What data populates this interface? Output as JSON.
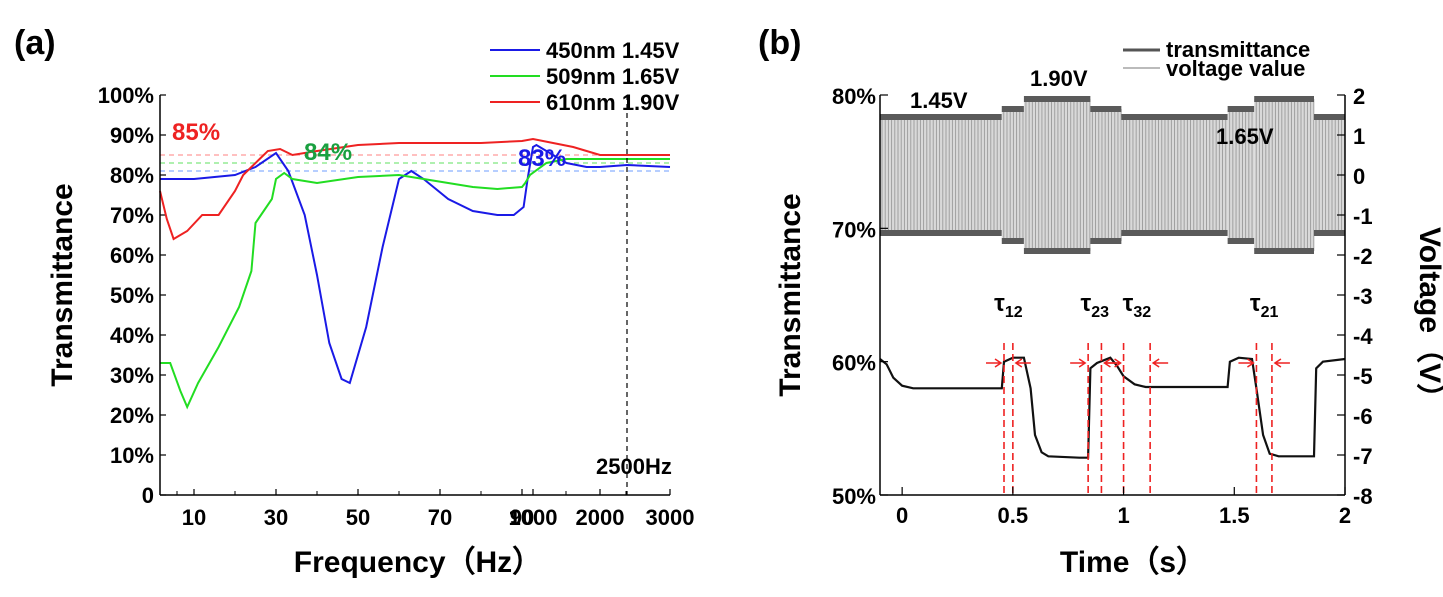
{
  "panels": [
    {
      "label": "(a)",
      "chart_data": {
        "type": "line",
        "xlabel": "Frequency（Hz）",
        "ylabel": "Transmittance",
        "x_ticks": [
          "10",
          "30",
          "50",
          "70",
          "90",
          "1000",
          "2000",
          "3000"
        ],
        "y_ticks": [
          "0",
          "10%",
          "20%",
          "30%",
          "40%",
          "50%",
          "60%",
          "70%",
          "80%",
          "90%",
          "100%"
        ],
        "ylim": [
          0,
          100
        ],
        "marker_line": {
          "label": "2500Hz",
          "x": 2500
        },
        "series": [
          {
            "name": "450nm 1.45V",
            "color": "#1a1ae6",
            "ref_label": "83%",
            "ref_value": 81,
            "points": [
              [
                0,
                79
              ],
              [
                10,
                79
              ],
              [
                20,
                80
              ],
              [
                25,
                82
              ],
              [
                30,
                85.5
              ],
              [
                33,
                81
              ],
              [
                37,
                70
              ],
              [
                40,
                55
              ],
              [
                43,
                38
              ],
              [
                46,
                29
              ],
              [
                48,
                28
              ],
              [
                52,
                42
              ],
              [
                56,
                62
              ],
              [
                60,
                79
              ],
              [
                63,
                81
              ],
              [
                66,
                79
              ],
              [
                72,
                74
              ],
              [
                78,
                71
              ],
              [
                84,
                70
              ],
              [
                88,
                70
              ],
              [
                92,
                72
              ],
              [
                97,
                79
              ],
              [
                1000,
                87
              ],
              [
                1050,
                87.5
              ],
              [
                1200,
                86
              ],
              [
                1500,
                83
              ],
              [
                1800,
                82
              ],
              [
                2000,
                82
              ],
              [
                2500,
                82.5
              ],
              [
                3000,
                82
              ]
            ]
          },
          {
            "name": "509nm 1.65V",
            "color": "#22dd22",
            "ref_label": "84%",
            "ref_value": 83,
            "points": [
              [
                0,
                33
              ],
              [
                3,
                33
              ],
              [
                6,
                26
              ],
              [
                8,
                22
              ],
              [
                11,
                28
              ],
              [
                16,
                37
              ],
              [
                21,
                47
              ],
              [
                24,
                56
              ],
              [
                25,
                68
              ],
              [
                27,
                71
              ],
              [
                29,
                74
              ],
              [
                30,
                79
              ],
              [
                32,
                80.5
              ],
              [
                34,
                79
              ],
              [
                40,
                78
              ],
              [
                50,
                79.5
              ],
              [
                60,
                80
              ],
              [
                66,
                79
              ],
              [
                72,
                78
              ],
              [
                78,
                77
              ],
              [
                84,
                76.5
              ],
              [
                90,
                77
              ],
              [
                94,
                78
              ],
              [
                100,
                80
              ],
              [
                1200,
                83
              ],
              [
                1500,
                84
              ],
              [
                1800,
                84
              ],
              [
                2000,
                84
              ],
              [
                2500,
                84
              ],
              [
                3000,
                84
              ]
            ]
          },
          {
            "name": "610nm 1.90V",
            "color": "#ee2222",
            "ref_label": "85%",
            "ref_value": 85,
            "points": [
              [
                0,
                76
              ],
              [
                2,
                69
              ],
              [
                4,
                64
              ],
              [
                8,
                66
              ],
              [
                12,
                70
              ],
              [
                16,
                70
              ],
              [
                20,
                76
              ],
              [
                22,
                80
              ],
              [
                24,
                82
              ],
              [
                26,
                84
              ],
              [
                28,
                86
              ],
              [
                31,
                86.5
              ],
              [
                34,
                85
              ],
              [
                40,
                86
              ],
              [
                50,
                87.5
              ],
              [
                60,
                88
              ],
              [
                70,
                88
              ],
              [
                80,
                88
              ],
              [
                90,
                88.5
              ],
              [
                1000,
                89
              ],
              [
                1300,
                88
              ],
              [
                1600,
                87
              ],
              [
                1800,
                86
              ],
              [
                2000,
                85
              ],
              [
                2500,
                85
              ],
              [
                3000,
                85
              ]
            ]
          }
        ]
      }
    },
    {
      "label": "(b)",
      "chart_data": {
        "type": "line",
        "xlabel": "Time（s）",
        "ylabel_left": "Transmittance",
        "ylabel_right": "Voltage（V）",
        "x_ticks": [
          "0",
          "0.5",
          "1",
          "1.5",
          "2"
        ],
        "xlim": [
          -0.1,
          2.0
        ],
        "y_ticks_left": [
          "50%",
          "60%",
          "70%",
          "80%"
        ],
        "ylim_left": [
          50,
          80
        ],
        "y_ticks_right": [
          "2",
          "1",
          "0",
          "-1",
          "-2",
          "-3",
          "-4",
          "-5",
          "-6",
          "-7",
          "-8"
        ],
        "ylim_right": [
          -8,
          2
        ],
        "legend": [
          "transmittance",
          "voltage value"
        ],
        "voltage_labels": [
          "1.45V",
          "1.90V",
          "1.65V"
        ],
        "voltage_segments": [
          {
            "t0": -0.1,
            "t1": 0.45,
            "amp": 1.45
          },
          {
            "t0": 0.45,
            "t1": 0.55,
            "amp": 1.65
          },
          {
            "t0": 0.55,
            "t1": 0.85,
            "amp": 1.9
          },
          {
            "t0": 0.85,
            "t1": 0.99,
            "amp": 1.65
          },
          {
            "t0": 0.99,
            "t1": 1.47,
            "amp": 1.45
          },
          {
            "t0": 1.47,
            "t1": 1.59,
            "amp": 1.65
          },
          {
            "t0": 1.59,
            "t1": 1.86,
            "amp": 1.9
          },
          {
            "t0": 1.86,
            "t1": 2.0,
            "amp": 1.45
          }
        ],
        "transmittance_points": [
          [
            -0.1,
            60.2
          ],
          [
            -0.07,
            59.8
          ],
          [
            -0.04,
            58.8
          ],
          [
            0,
            58.2
          ],
          [
            0.05,
            58
          ],
          [
            0.45,
            58
          ],
          [
            0.46,
            60
          ],
          [
            0.5,
            60.3
          ],
          [
            0.55,
            60.3
          ],
          [
            0.58,
            58
          ],
          [
            0.6,
            54.5
          ],
          [
            0.63,
            53.2
          ],
          [
            0.66,
            52.9
          ],
          [
            0.8,
            52.8
          ],
          [
            0.84,
            52.8
          ],
          [
            0.85,
            59.5
          ],
          [
            0.88,
            59.9
          ],
          [
            0.94,
            60.3
          ],
          [
            0.97,
            59.7
          ],
          [
            1.0,
            58.9
          ],
          [
            1.05,
            58.3
          ],
          [
            1.1,
            58.1
          ],
          [
            1.47,
            58.1
          ],
          [
            1.48,
            60
          ],
          [
            1.52,
            60.3
          ],
          [
            1.58,
            60.2
          ],
          [
            1.6,
            58
          ],
          [
            1.63,
            54.5
          ],
          [
            1.66,
            53.1
          ],
          [
            1.7,
            52.9
          ],
          [
            1.86,
            52.9
          ],
          [
            1.87,
            59.5
          ],
          [
            1.9,
            60
          ],
          [
            2.0,
            60.2
          ]
        ],
        "response_times": [
          {
            "label": "τ12",
            "t_start": 0.46,
            "t_end": 0.5
          },
          {
            "label": "τ23",
            "t_start": 0.84,
            "t_end": 0.9
          },
          {
            "label": "τ32",
            "t_start": 1.0,
            "t_end": 1.12
          },
          {
            "label": "τ21",
            "t_start": 1.6,
            "t_end": 1.67
          }
        ]
      }
    }
  ]
}
